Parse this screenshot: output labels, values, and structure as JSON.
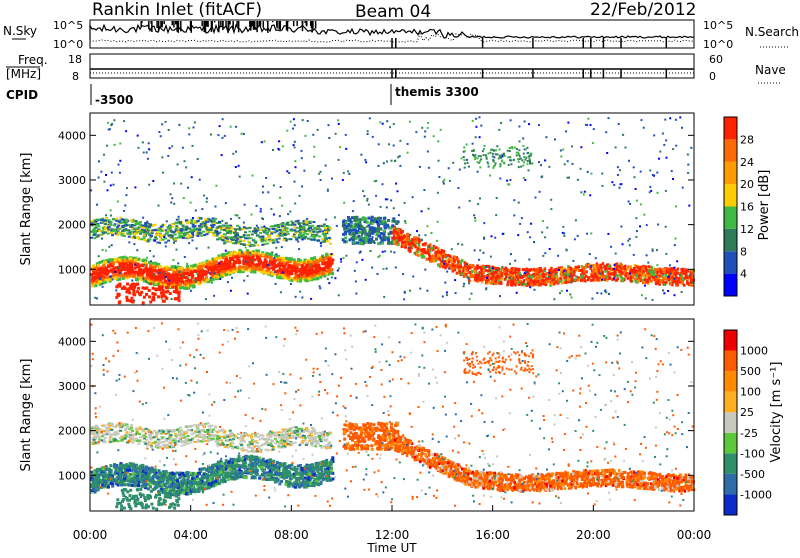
{
  "header": {
    "station": "Rankin Inlet (fitACF)",
    "beam": "Beam 04",
    "date": "22/Feb/2012"
  },
  "top_panels": {
    "nsky_label": "N.Sky",
    "nsearch_label": "N.Search",
    "nsky_ticks": [
      "10^5",
      "10^0"
    ],
    "nsearch_ticks": [
      "10^5",
      "10^0"
    ],
    "freq_label_1": "Freq.",
    "freq_label_2": "[MHz]",
    "freq_ticks": [
      "18",
      "8"
    ],
    "nave_label": "Nave",
    "nave_ticks": [
      "60",
      "0"
    ],
    "cpid_label": "CPID",
    "cpid_entries": [
      {
        "label": "-3500",
        "start_hour": 0
      },
      {
        "label": "themis 3300",
        "start_hour": 12
      }
    ]
  },
  "chart_data": [
    {
      "type": "heatmap",
      "name": "power",
      "ylabel": "Slant Range [km]",
      "x_range_hours": [
        0,
        24
      ],
      "ylim": [
        200,
        4500
      ],
      "y_ticks": [
        1000,
        2000,
        3000,
        4000
      ],
      "colorbar": {
        "label": "Power [dB]",
        "ticks": [
          "4",
          "8",
          "12",
          "16",
          "20",
          "24",
          "28"
        ],
        "colors": [
          "#0000ff",
          "#1f4fb8",
          "#2e7b5a",
          "#3fb845",
          "#ffcc00",
          "#ff9a00",
          "#ff6a00",
          "#ff2200"
        ]
      }
    },
    {
      "type": "heatmap",
      "name": "velocity",
      "ylabel": "Slant Range [km]",
      "x_range_hours": [
        0,
        24
      ],
      "ylim": [
        200,
        4500
      ],
      "y_ticks": [
        1000,
        2000,
        3000,
        4000
      ],
      "colorbar": {
        "label": "Velocity [m s⁻¹]",
        "ticks": [
          "1000",
          "500",
          "100",
          "25",
          "-25",
          "-100",
          "-500",
          "-1000"
        ],
        "colors": [
          "#0b2cc9",
          "#2d6ca8",
          "#2e8f6b",
          "#5cc93d",
          "#c8c8c0",
          "#ffb020",
          "#ff8a00",
          "#ff5a00",
          "#ee0000"
        ]
      }
    }
  ],
  "x_axis": {
    "ticks": [
      "00:00",
      "04:00",
      "08:00",
      "12:00",
      "16:00",
      "20:00",
      "00:00"
    ],
    "label": "Time UT"
  }
}
